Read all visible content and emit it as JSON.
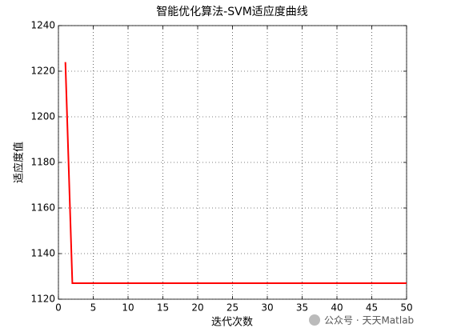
{
  "chart_data": {
    "type": "line",
    "title": "智能优化算法-SVM适应度曲线",
    "x_label": "迭代次数",
    "y_label": "适应度值",
    "x": [
      1,
      2,
      3,
      4,
      5,
      6,
      7,
      8,
      9,
      10,
      11,
      12,
      13,
      14,
      15,
      16,
      17,
      18,
      19,
      20,
      21,
      22,
      23,
      24,
      25,
      26,
      27,
      28,
      29,
      30,
      31,
      32,
      33,
      34,
      35,
      36,
      37,
      38,
      39,
      40,
      41,
      42,
      43,
      44,
      45,
      46,
      47,
      48,
      49,
      50
    ],
    "series": [
      {
        "color": "#ff0000",
        "values": [
          1224,
          1127,
          1127,
          1127,
          1127,
          1127,
          1127,
          1127,
          1127,
          1127,
          1127,
          1127,
          1127,
          1127,
          1127,
          1127,
          1127,
          1127,
          1127,
          1127,
          1127,
          1127,
          1127,
          1127,
          1127,
          1127,
          1127,
          1127,
          1127,
          1127,
          1127,
          1127,
          1127,
          1127,
          1127,
          1127,
          1127,
          1127,
          1127,
          1127,
          1127,
          1127,
          1127,
          1127,
          1127,
          1127,
          1127,
          1127,
          1127,
          1127
        ]
      }
    ],
    "xlim": [
      0,
      50
    ],
    "xticks": [
      0,
      5,
      10,
      15,
      20,
      25,
      30,
      35,
      40,
      45,
      50
    ],
    "ylim": [
      1120,
      1240
    ],
    "yticks": [
      1120,
      1140,
      1160,
      1180,
      1200,
      1220,
      1240
    ],
    "grid": true,
    "watermark": "公众号 · 天天Matlab"
  }
}
